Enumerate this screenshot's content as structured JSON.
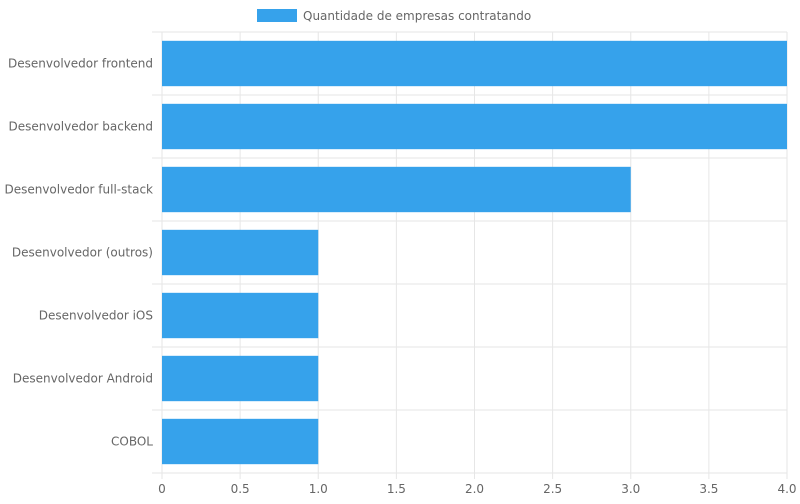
{
  "chart_data": {
    "type": "bar",
    "orientation": "horizontal",
    "categories": [
      "Desenvolvedor frontend",
      "Desenvolvedor backend",
      "Desenvolvedor full-stack",
      "Desenvolvedor (outros)",
      "Desenvolvedor iOS",
      "Desenvolvedor Android",
      "COBOL"
    ],
    "series": [
      {
        "name": "Quantidade de empresas contratando",
        "values": [
          4,
          4,
          3,
          1,
          1,
          1,
          1
        ],
        "color": "#36a2eb"
      }
    ],
    "xlim": [
      0,
      4
    ],
    "x_ticks": [
      "0",
      "0.5",
      "1.0",
      "1.5",
      "2.0",
      "2.5",
      "3.0",
      "3.5",
      "4.0"
    ],
    "grid": true,
    "legend_position": "top-center",
    "colors": {
      "grid": "#e6e6e6",
      "text": "#666666",
      "bar_border": "#ffffff"
    }
  }
}
